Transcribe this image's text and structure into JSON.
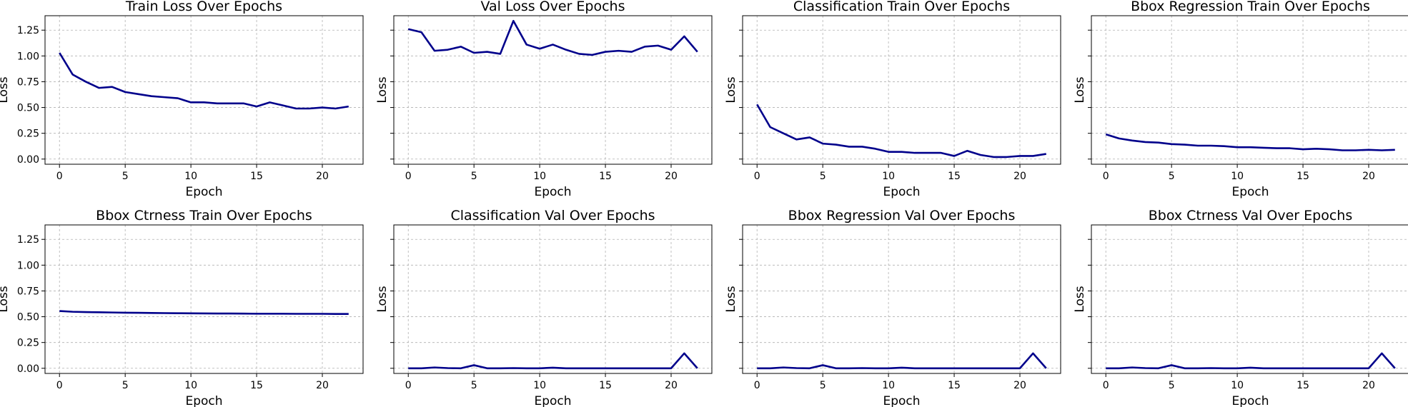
{
  "style": {
    "line_color": "#00008b",
    "grid_color": "#b0b0b0"
  },
  "chart_data": [
    {
      "type": "line",
      "title": "Train Loss Over Epochs",
      "xlabel": "Epoch",
      "ylabel": "Loss",
      "xlim": [
        -1.1,
        23.1
      ],
      "ylim": [
        -0.05,
        1.39
      ],
      "grid": true,
      "xticks": [
        0,
        5,
        10,
        15,
        20
      ],
      "yticks": [
        "0.00",
        "0.25",
        "0.50",
        "0.75",
        "1.00",
        "1.25"
      ],
      "show_ytick_labels": true,
      "series": [
        {
          "x": [
            0,
            1,
            2,
            3,
            4,
            5,
            6,
            7,
            8,
            9,
            10,
            11,
            12,
            13,
            14,
            15,
            16,
            17,
            18,
            19,
            20,
            21,
            22
          ],
          "values": [
            1.03,
            0.82,
            0.75,
            0.69,
            0.7,
            0.65,
            0.63,
            0.61,
            0.6,
            0.59,
            0.55,
            0.55,
            0.54,
            0.54,
            0.54,
            0.51,
            0.55,
            0.52,
            0.49,
            0.49,
            0.5,
            0.49,
            0.51
          ]
        }
      ]
    },
    {
      "type": "line",
      "title": "Val Loss Over Epochs",
      "xlabel": "Epoch",
      "ylabel": "Loss",
      "xlim": [
        -1.1,
        23.1
      ],
      "ylim": [
        -0.05,
        1.39
      ],
      "grid": true,
      "xticks": [
        0,
        5,
        10,
        15,
        20
      ],
      "yticks": [
        "0.00",
        "0.25",
        "0.50",
        "0.75",
        "1.00",
        "1.25"
      ],
      "show_ytick_labels": false,
      "series": [
        {
          "x": [
            0,
            1,
            2,
            3,
            4,
            5,
            6,
            7,
            8,
            9,
            10,
            11,
            12,
            13,
            14,
            15,
            16,
            17,
            18,
            19,
            20,
            21,
            22
          ],
          "values": [
            1.26,
            1.23,
            1.05,
            1.06,
            1.09,
            1.03,
            1.04,
            1.02,
            1.34,
            1.11,
            1.07,
            1.11,
            1.06,
            1.02,
            1.01,
            1.04,
            1.05,
            1.04,
            1.09,
            1.1,
            1.06,
            1.19,
            1.04
          ]
        }
      ]
    },
    {
      "type": "line",
      "title": "Classification Train Over Epochs",
      "xlabel": "Epoch",
      "ylabel": "Loss",
      "xlim": [
        -1.1,
        23.1
      ],
      "ylim": [
        -0.05,
        1.39
      ],
      "grid": true,
      "xticks": [
        0,
        5,
        10,
        15,
        20
      ],
      "yticks": [
        "0.00",
        "0.25",
        "0.50",
        "0.75",
        "1.00",
        "1.25"
      ],
      "show_ytick_labels": false,
      "series": [
        {
          "x": [
            0,
            1,
            2,
            3,
            4,
            5,
            6,
            7,
            8,
            9,
            10,
            11,
            12,
            13,
            14,
            15,
            16,
            17,
            18,
            19,
            20,
            21,
            22
          ],
          "values": [
            0.53,
            0.31,
            0.25,
            0.19,
            0.21,
            0.15,
            0.14,
            0.12,
            0.12,
            0.1,
            0.07,
            0.07,
            0.06,
            0.06,
            0.06,
            0.03,
            0.08,
            0.04,
            0.02,
            0.02,
            0.03,
            0.03,
            0.05
          ]
        }
      ]
    },
    {
      "type": "line",
      "title": "Bbox Regression Train Over Epochs",
      "xlabel": "Epoch",
      "ylabel": "Loss",
      "xlim": [
        -1.1,
        23.1
      ],
      "ylim": [
        -0.05,
        1.39
      ],
      "grid": true,
      "xticks": [
        0,
        5,
        10,
        15,
        20
      ],
      "yticks": [
        "0.00",
        "0.25",
        "0.50",
        "0.75",
        "1.00",
        "1.25"
      ],
      "show_ytick_labels": false,
      "series": [
        {
          "x": [
            0,
            1,
            2,
            3,
            4,
            5,
            6,
            7,
            8,
            9,
            10,
            11,
            12,
            13,
            14,
            15,
            16,
            17,
            18,
            19,
            20,
            21,
            22
          ],
          "values": [
            0.24,
            0.2,
            0.18,
            0.165,
            0.16,
            0.145,
            0.14,
            0.13,
            0.13,
            0.125,
            0.115,
            0.115,
            0.11,
            0.105,
            0.105,
            0.095,
            0.1,
            0.095,
            0.085,
            0.085,
            0.09,
            0.085,
            0.09
          ]
        }
      ]
    },
    {
      "type": "line",
      "title": "Bbox Ctrness Train Over Epochs",
      "xlabel": "Epoch",
      "ylabel": "Loss",
      "xlim": [
        -1.1,
        23.1
      ],
      "ylim": [
        -0.05,
        1.39
      ],
      "grid": true,
      "xticks": [
        0,
        5,
        10,
        15,
        20
      ],
      "yticks": [
        "0.00",
        "0.25",
        "0.50",
        "0.75",
        "1.00",
        "1.25"
      ],
      "show_ytick_labels": true,
      "series": [
        {
          "x": [
            0,
            1,
            2,
            3,
            4,
            5,
            6,
            7,
            8,
            9,
            10,
            11,
            12,
            13,
            14,
            15,
            16,
            17,
            18,
            19,
            20,
            21,
            22
          ],
          "values": [
            0.555,
            0.548,
            0.545,
            0.543,
            0.541,
            0.539,
            0.538,
            0.536,
            0.535,
            0.534,
            0.533,
            0.532,
            0.531,
            0.531,
            0.53,
            0.529,
            0.529,
            0.529,
            0.528,
            0.528,
            0.528,
            0.527,
            0.527
          ]
        }
      ]
    },
    {
      "type": "line",
      "title": "Classification Val Over Epochs",
      "xlabel": "Epoch",
      "ylabel": "Loss",
      "xlim": [
        -1.1,
        23.1
      ],
      "ylim": [
        -0.05,
        1.39
      ],
      "grid": true,
      "xticks": [
        0,
        5,
        10,
        15,
        20
      ],
      "yticks": [
        "0.00",
        "0.25",
        "0.50",
        "0.75",
        "1.00",
        "1.25"
      ],
      "show_ytick_labels": false,
      "series": [
        {
          "x": [
            0,
            1,
            2,
            3,
            4,
            5,
            6,
            7,
            8,
            9,
            10,
            11,
            12,
            13,
            14,
            15,
            16,
            17,
            18,
            19,
            20,
            21,
            22
          ],
          "values": [
            0.0,
            0.0,
            0.008,
            0.002,
            0.0,
            0.03,
            0.0,
            0.0,
            0.002,
            0.0,
            0.0,
            0.006,
            0.0,
            0.0,
            0.0,
            0.0,
            0.0,
            0.0,
            0.0,
            0.0,
            0.0,
            0.145,
            0.0
          ]
        }
      ]
    },
    {
      "type": "line",
      "title": "Bbox Regression Val Over Epochs",
      "xlabel": "Epoch",
      "ylabel": "Loss",
      "xlim": [
        -1.1,
        23.1
      ],
      "ylim": [
        -0.05,
        1.39
      ],
      "grid": true,
      "xticks": [
        0,
        5,
        10,
        15,
        20
      ],
      "yticks": [
        "0.00",
        "0.25",
        "0.50",
        "0.75",
        "1.00",
        "1.25"
      ],
      "show_ytick_labels": false,
      "series": [
        {
          "x": [
            0,
            1,
            2,
            3,
            4,
            5,
            6,
            7,
            8,
            9,
            10,
            11,
            12,
            13,
            14,
            15,
            16,
            17,
            18,
            19,
            20,
            21,
            22
          ],
          "values": [
            0.0,
            0.0,
            0.008,
            0.002,
            0.0,
            0.03,
            0.0,
            0.0,
            0.002,
            0.0,
            0.0,
            0.006,
            0.0,
            0.0,
            0.0,
            0.0,
            0.0,
            0.0,
            0.0,
            0.0,
            0.0,
            0.145,
            0.0
          ]
        }
      ]
    },
    {
      "type": "line",
      "title": "Bbox Ctrness Val Over Epochs",
      "xlabel": "Epoch",
      "ylabel": "Loss",
      "xlim": [
        -1.1,
        23.1
      ],
      "ylim": [
        -0.05,
        1.39
      ],
      "grid": true,
      "xticks": [
        0,
        5,
        10,
        15,
        20
      ],
      "yticks": [
        "0.00",
        "0.25",
        "0.50",
        "0.75",
        "1.00",
        "1.25"
      ],
      "show_ytick_labels": false,
      "series": [
        {
          "x": [
            0,
            1,
            2,
            3,
            4,
            5,
            6,
            7,
            8,
            9,
            10,
            11,
            12,
            13,
            14,
            15,
            16,
            17,
            18,
            19,
            20,
            21,
            22
          ],
          "values": [
            0.0,
            0.0,
            0.008,
            0.002,
            0.0,
            0.03,
            0.0,
            0.0,
            0.002,
            0.0,
            0.0,
            0.006,
            0.0,
            0.0,
            0.0,
            0.0,
            0.0,
            0.0,
            0.0,
            0.0,
            0.0,
            0.145,
            0.0
          ]
        }
      ]
    }
  ]
}
